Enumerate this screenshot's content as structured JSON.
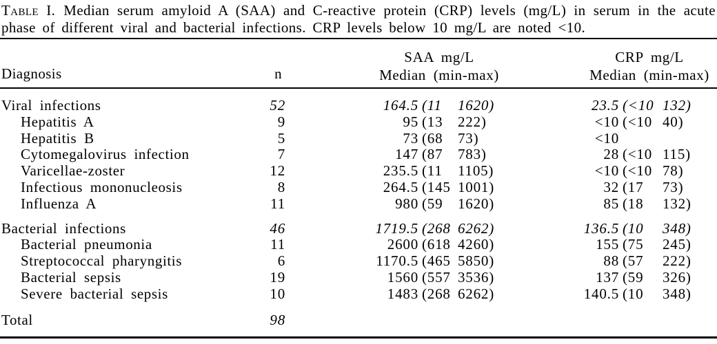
{
  "caption": {
    "label": "Table I.",
    "line1": "Median serum amyloid A (SAA) and C-reactive protein (CRP) levels (mg/L) in serum in the acute",
    "line2": "phase of different viral and bacterial infections. CRP levels below 10 mg/L are noted <10."
  },
  "header": {
    "diagnosis": "Diagnosis",
    "n": "n",
    "saa_title": "SAA mg/L",
    "saa_sub": "Median (min-max)",
    "crp_title": "CRP mg/L",
    "crp_sub": "Median (min-max)"
  },
  "rows": [
    {
      "variant": "group",
      "label": "Viral infections",
      "n": "52",
      "saa": {
        "median": "164.5",
        "min": "11",
        "max": "1620"
      },
      "crp": {
        "median": "23.5",
        "min": "<10",
        "max": "132"
      }
    },
    {
      "variant": "sub",
      "label": "Hepatitis A",
      "n": "9",
      "saa": {
        "median": "95",
        "min": "13",
        "max": "222"
      },
      "crp": {
        "median": "<10",
        "min": "<10",
        "max": "40"
      }
    },
    {
      "variant": "sub",
      "label": "Hepatitis B",
      "n": "5",
      "saa": {
        "median": "73",
        "min": "68",
        "max": "73"
      },
      "crp": {
        "median": "<10"
      }
    },
    {
      "variant": "sub",
      "label": "Cytomegalovirus infection",
      "n": "7",
      "saa": {
        "median": "147",
        "min": "87",
        "max": "783"
      },
      "crp": {
        "median": "28",
        "min": "<10",
        "max": "115"
      }
    },
    {
      "variant": "sub",
      "label": "Varicellae-zoster",
      "n": "12",
      "saa": {
        "median": "235.5",
        "min": "11",
        "max": "1105"
      },
      "crp": {
        "median": "<10",
        "min": "<10",
        "max": "78"
      }
    },
    {
      "variant": "sub",
      "label": "Infectious mononucleosis",
      "n": "8",
      "saa": {
        "median": "264.5",
        "min": "145",
        "max": "1001"
      },
      "crp": {
        "median": "32",
        "min": "17",
        "max": "73"
      }
    },
    {
      "variant": "sub",
      "label": "Influenza A",
      "n": "11",
      "saa": {
        "median": "980",
        "min": "59",
        "max": "1620"
      },
      "crp": {
        "median": "85",
        "min": "18",
        "max": "132"
      }
    },
    {
      "variant": "group",
      "gap_before": true,
      "label": "Bacterial infections",
      "n": "46",
      "saa": {
        "median": "1719.5",
        "min": "268",
        "max": "6262"
      },
      "crp": {
        "median": "136.5",
        "min": "10",
        "max": "348"
      }
    },
    {
      "variant": "sub",
      "label": "Bacterial pneumonia",
      "n": "11",
      "saa": {
        "median": "2600",
        "min": "618",
        "max": "4260"
      },
      "crp": {
        "median": "155",
        "min": "75",
        "max": "245"
      }
    },
    {
      "variant": "sub",
      "label": "Streptococcal pharyngitis",
      "n": "6",
      "saa": {
        "median": "1170.5",
        "min": "465",
        "max": "5850"
      },
      "crp": {
        "median": "88",
        "min": "57",
        "max": "222"
      }
    },
    {
      "variant": "sub",
      "label": "Bacterial sepsis",
      "n": "19",
      "saa": {
        "median": "1560",
        "min": "557",
        "max": "3536"
      },
      "crp": {
        "median": "137",
        "min": "59",
        "max": "326"
      }
    },
    {
      "variant": "sub",
      "label": "Severe bacterial sepsis",
      "n": "10",
      "saa": {
        "median": "1483",
        "min": "268",
        "max": "6262"
      },
      "crp": {
        "median": "140.5",
        "min": "10",
        "max": "348"
      }
    },
    {
      "variant": "total",
      "gap_before_lg": true,
      "label": "Total",
      "n": "98"
    }
  ]
}
